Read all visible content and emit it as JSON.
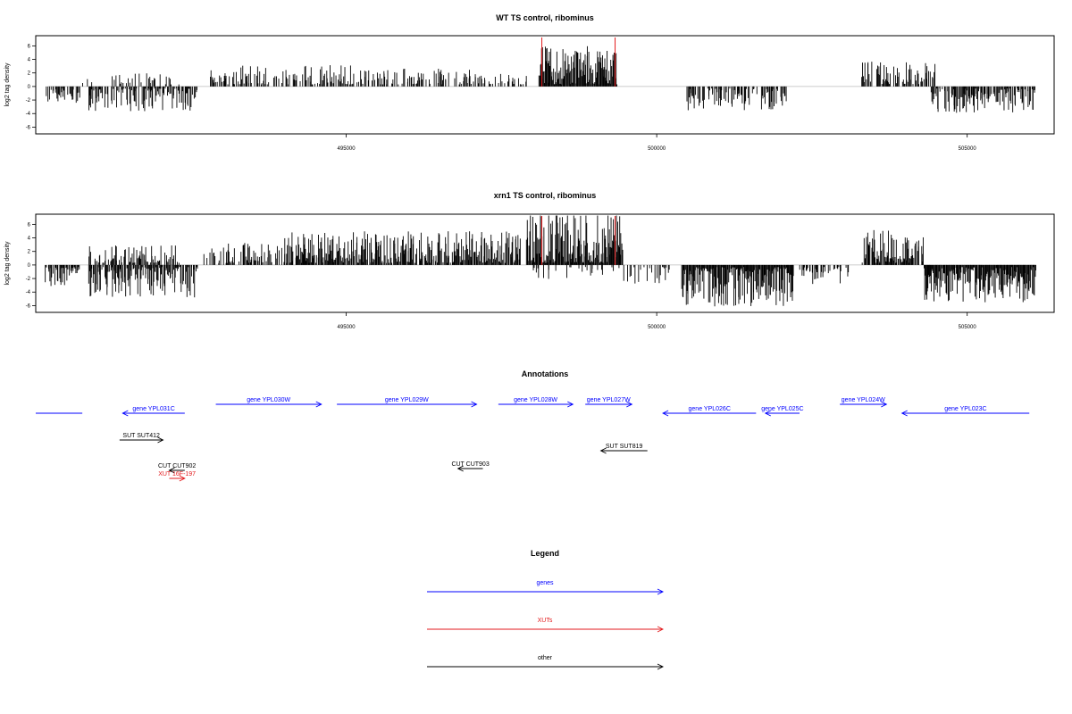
{
  "chart_data": [
    {
      "type": "bar",
      "title": "WT TS control, ribominus",
      "ylabel": "log2 tag density",
      "xlabel": "",
      "xlim": [
        490000,
        506400
      ],
      "ylim": [
        -7,
        7.5
      ],
      "yticks": [
        -6,
        -4,
        -2,
        0,
        2,
        4,
        6
      ],
      "xticks": [
        495000,
        500000,
        505000
      ],
      "highlight_x": [
        498150,
        499330
      ],
      "highlight_color": "#e31a1c",
      "segments": [
        {
          "start": 490150,
          "end": 490700,
          "sign": -1,
          "amp": 1.8,
          "density": 0.5
        },
        {
          "start": 490700,
          "end": 490900,
          "sign": 1,
          "amp": 1.5,
          "density": 0.3
        },
        {
          "start": 490850,
          "end": 492600,
          "sign": -1,
          "amp": 2.6,
          "density": 0.6
        },
        {
          "start": 491200,
          "end": 492300,
          "sign": 1,
          "amp": 1.3,
          "density": 0.3
        },
        {
          "start": 492800,
          "end": 495200,
          "sign": 1,
          "amp": 2.3,
          "density": 0.45
        },
        {
          "start": 495200,
          "end": 497000,
          "sign": 1,
          "amp": 1.8,
          "density": 0.4
        },
        {
          "start": 497000,
          "end": 497900,
          "sign": 1,
          "amp": 1.2,
          "density": 0.35
        },
        {
          "start": 498100,
          "end": 499350,
          "sign": 1,
          "amp": 4.5,
          "density": 1.0
        },
        {
          "start": 500450,
          "end": 502100,
          "sign": -1,
          "amp": 2.5,
          "density": 0.6
        },
        {
          "start": 503300,
          "end": 504500,
          "sign": 1,
          "amp": 2.6,
          "density": 0.6
        },
        {
          "start": 504400,
          "end": 506100,
          "sign": -1,
          "amp": 2.8,
          "density": 0.7
        }
      ]
    },
    {
      "type": "bar",
      "title": "xrn1 TS control, ribominus",
      "ylabel": "log2 tag density",
      "xlabel": "",
      "xlim": [
        490000,
        506400
      ],
      "ylim": [
        -7,
        7.5
      ],
      "yticks": [
        -6,
        -4,
        -2,
        0,
        2,
        4,
        6
      ],
      "xticks": [
        495000,
        500000,
        505000
      ],
      "highlight_x": [
        498150,
        499330
      ],
      "highlight_color": "#e31a1c",
      "segments": [
        {
          "start": 490150,
          "end": 490700,
          "sign": -1,
          "amp": 2.2,
          "density": 0.6
        },
        {
          "start": 490850,
          "end": 492300,
          "sign": 1,
          "amp": 2.0,
          "density": 0.6
        },
        {
          "start": 490850,
          "end": 492600,
          "sign": -1,
          "amp": 3.5,
          "density": 0.8
        },
        {
          "start": 492700,
          "end": 494000,
          "sign": 1,
          "amp": 2.3,
          "density": 0.5
        },
        {
          "start": 494000,
          "end": 497800,
          "sign": 1,
          "amp": 3.6,
          "density": 0.8
        },
        {
          "start": 497900,
          "end": 499450,
          "sign": 1,
          "amp": 5.8,
          "density": 1.0
        },
        {
          "start": 498000,
          "end": 499400,
          "sign": -1,
          "amp": 1.4,
          "density": 0.25
        },
        {
          "start": 499400,
          "end": 500200,
          "sign": -1,
          "amp": 2.0,
          "density": 0.2
        },
        {
          "start": 500400,
          "end": 502200,
          "sign": -1,
          "amp": 4.5,
          "density": 1.0
        },
        {
          "start": 502300,
          "end": 503100,
          "sign": -1,
          "amp": 2.2,
          "density": 0.4
        },
        {
          "start": 503300,
          "end": 504300,
          "sign": 1,
          "amp": 3.8,
          "density": 0.8
        },
        {
          "start": 504300,
          "end": 506100,
          "sign": -1,
          "amp": 4.0,
          "density": 1.0
        }
      ]
    }
  ],
  "annotations": {
    "title": "Annotations",
    "colors": {
      "gene": "#0000ff",
      "XUT": "#e31a1c",
      "other": "#000000"
    },
    "features": [
      {
        "label": "",
        "kind": "gene",
        "start": 490000,
        "end": 490750,
        "strand": "none"
      },
      {
        "label": "gene YPL031C",
        "kind": "gene",
        "start": 491400,
        "end": 492400,
        "strand": "-"
      },
      {
        "label": "gene YPL030W",
        "kind": "gene",
        "start": 492900,
        "end": 494600,
        "strand": "+"
      },
      {
        "label": "gene YPL029W",
        "kind": "gene",
        "start": 494850,
        "end": 497100,
        "strand": "+"
      },
      {
        "label": "gene YPL028W",
        "kind": "gene",
        "start": 497450,
        "end": 498650,
        "strand": "+"
      },
      {
        "label": "gene YPL027W",
        "kind": "gene",
        "start": 498850,
        "end": 499600,
        "strand": "+"
      },
      {
        "label": "gene YPL026C",
        "kind": "gene",
        "start": 500100,
        "end": 501600,
        "strand": "-"
      },
      {
        "label": "gene YPL025C",
        "kind": "gene",
        "start": 501750,
        "end": 502300,
        "strand": "-"
      },
      {
        "label": "gene YPL024W",
        "kind": "gene",
        "start": 502950,
        "end": 503700,
        "strand": "+"
      },
      {
        "label": "gene YPL023C",
        "kind": "gene",
        "start": 503950,
        "end": 506000,
        "strand": "-"
      },
      {
        "label": "SUT SUT412",
        "kind": "other",
        "start": 491350,
        "end": 492050,
        "strand": "+"
      },
      {
        "label": "SUT SUT819",
        "kind": "other",
        "start": 499100,
        "end": 499850,
        "strand": "-"
      },
      {
        "label": "CUT CUT902",
        "kind": "other",
        "start": 492150,
        "end": 492400,
        "strand": "-"
      },
      {
        "label": "CUT CUT903",
        "kind": "other",
        "start": 496800,
        "end": 497200,
        "strand": "-"
      },
      {
        "label": "XUT 16F-197",
        "kind": "XUT",
        "start": 492150,
        "end": 492400,
        "strand": "+"
      }
    ]
  },
  "legend": {
    "title": "Legend",
    "items": [
      {
        "label": "genes",
        "color": "#0000ff"
      },
      {
        "label": "XUTs",
        "color": "#e31a1c"
      },
      {
        "label": "other",
        "color": "#000000"
      }
    ]
  }
}
